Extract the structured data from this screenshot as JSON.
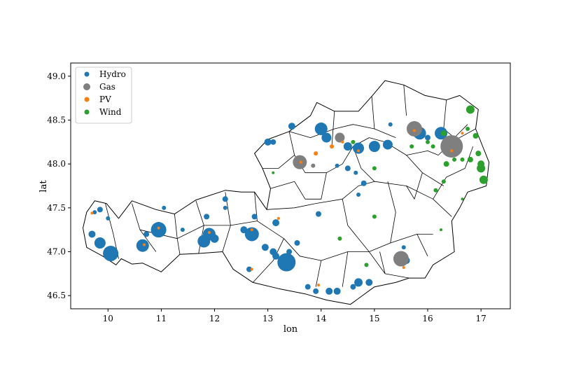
{
  "chart_data": {
    "type": "scatter",
    "xlabel": "lon",
    "ylabel": "lat",
    "xlim": [
      9.3,
      17.55
    ],
    "ylim": [
      46.35,
      49.15
    ],
    "xticks": [
      10,
      11,
      12,
      13,
      14,
      15,
      16,
      17
    ],
    "yticks": [
      46.5,
      47.0,
      47.5,
      48.0,
      48.5,
      49.0
    ],
    "xtick_labels": [
      "10",
      "11",
      "12",
      "13",
      "14",
      "15",
      "16",
      "17"
    ],
    "ytick_labels": [
      "46.5",
      "47.0",
      "47.5",
      "48.0",
      "48.5",
      "49.0"
    ],
    "legend_position": "upper-left",
    "grid": false,
    "series": [
      {
        "name": "Hydro",
        "color": "#1f77b4",
        "points": [
          {
            "x": 10.05,
            "y": 46.98,
            "s": 11
          },
          {
            "x": 9.85,
            "y": 47.1,
            "s": 8
          },
          {
            "x": 9.7,
            "y": 47.2,
            "s": 5
          },
          {
            "x": 9.75,
            "y": 47.45,
            "s": 3
          },
          {
            "x": 9.85,
            "y": 47.48,
            "s": 4
          },
          {
            "x": 10.0,
            "y": 47.38,
            "s": 3
          },
          {
            "x": 10.65,
            "y": 47.07,
            "s": 9
          },
          {
            "x": 10.72,
            "y": 47.2,
            "s": 4
          },
          {
            "x": 10.95,
            "y": 47.25,
            "s": 11
          },
          {
            "x": 10.95,
            "y": 47.3,
            "s": 5
          },
          {
            "x": 11.05,
            "y": 47.5,
            "s": 3
          },
          {
            "x": 11.4,
            "y": 47.25,
            "s": 3
          },
          {
            "x": 11.8,
            "y": 47.12,
            "s": 9
          },
          {
            "x": 11.9,
            "y": 47.2,
            "s": 9
          },
          {
            "x": 12.0,
            "y": 47.15,
            "s": 6
          },
          {
            "x": 11.85,
            "y": 47.4,
            "s": 4
          },
          {
            "x": 12.2,
            "y": 47.6,
            "s": 4
          },
          {
            "x": 12.2,
            "y": 47.5,
            "s": 3
          },
          {
            "x": 12.55,
            "y": 47.25,
            "s": 5
          },
          {
            "x": 12.7,
            "y": 47.2,
            "s": 10
          },
          {
            "x": 12.75,
            "y": 47.4,
            "s": 4
          },
          {
            "x": 13.15,
            "y": 47.33,
            "s": 5
          },
          {
            "x": 13.35,
            "y": 46.88,
            "s": 13
          },
          {
            "x": 13.1,
            "y": 47.0,
            "s": 5
          },
          {
            "x": 13.15,
            "y": 46.95,
            "s": 5
          },
          {
            "x": 12.95,
            "y": 47.05,
            "s": 5
          },
          {
            "x": 12.65,
            "y": 46.8,
            "s": 4
          },
          {
            "x": 13.55,
            "y": 47.1,
            "s": 4
          },
          {
            "x": 13.75,
            "y": 46.6,
            "s": 4
          },
          {
            "x": 13.9,
            "y": 46.55,
            "s": 4
          },
          {
            "x": 14.15,
            "y": 46.55,
            "s": 5
          },
          {
            "x": 14.3,
            "y": 46.55,
            "s": 5
          },
          {
            "x": 14.6,
            "y": 46.6,
            "s": 4
          },
          {
            "x": 14.7,
            "y": 46.65,
            "s": 6
          },
          {
            "x": 14.9,
            "y": 46.65,
            "s": 5
          },
          {
            "x": 13.0,
            "y": 48.25,
            "s": 5
          },
          {
            "x": 13.1,
            "y": 48.25,
            "s": 4
          },
          {
            "x": 13.45,
            "y": 48.43,
            "s": 5
          },
          {
            "x": 14.0,
            "y": 48.4,
            "s": 9
          },
          {
            "x": 14.1,
            "y": 48.3,
            "s": 7
          },
          {
            "x": 14.5,
            "y": 48.2,
            "s": 6
          },
          {
            "x": 14.7,
            "y": 48.18,
            "s": 8
          },
          {
            "x": 15.0,
            "y": 48.2,
            "s": 8
          },
          {
            "x": 15.25,
            "y": 48.22,
            "s": 7
          },
          {
            "x": 15.85,
            "y": 48.35,
            "s": 9
          },
          {
            "x": 16.25,
            "y": 48.35,
            "s": 9
          },
          {
            "x": 16.0,
            "y": 48.3,
            "s": 4
          },
          {
            "x": 15.3,
            "y": 48.45,
            "s": 3
          },
          {
            "x": 14.3,
            "y": 47.98,
            "s": 3
          },
          {
            "x": 14.5,
            "y": 47.95,
            "s": 4
          },
          {
            "x": 14.65,
            "y": 47.9,
            "s": 3
          },
          {
            "x": 14.8,
            "y": 47.78,
            "s": 4
          },
          {
            "x": 14.7,
            "y": 47.65,
            "s": 3
          },
          {
            "x": 13.95,
            "y": 47.43,
            "s": 4
          },
          {
            "x": 15.6,
            "y": 46.9,
            "s": 5
          },
          {
            "x": 15.55,
            "y": 47.05,
            "s": 3
          },
          {
            "x": 13.4,
            "y": 47.0,
            "s": 4
          }
        ]
      },
      {
        "name": "Gas",
        "color": "#7f7f7f",
        "points": [
          {
            "x": 13.6,
            "y": 48.02,
            "s": 10
          },
          {
            "x": 14.35,
            "y": 48.3,
            "s": 7
          },
          {
            "x": 15.75,
            "y": 48.4,
            "s": 11
          },
          {
            "x": 16.45,
            "y": 48.2,
            "s": 16
          },
          {
            "x": 15.5,
            "y": 46.92,
            "s": 11
          },
          {
            "x": 13.85,
            "y": 47.98,
            "s": 3
          }
        ]
      },
      {
        "name": "PV",
        "color": "#ff7f0e",
        "points": [
          {
            "x": 9.7,
            "y": 47.44,
            "s": 2
          },
          {
            "x": 10.68,
            "y": 47.08,
            "s": 2
          },
          {
            "x": 10.95,
            "y": 47.27,
            "s": 2
          },
          {
            "x": 11.9,
            "y": 47.22,
            "s": 2
          },
          {
            "x": 12.7,
            "y": 47.25,
            "s": 2
          },
          {
            "x": 13.2,
            "y": 47.38,
            "s": 2
          },
          {
            "x": 13.9,
            "y": 48.12,
            "s": 3
          },
          {
            "x": 14.2,
            "y": 48.2,
            "s": 3
          },
          {
            "x": 14.4,
            "y": 48.25,
            "s": 2
          },
          {
            "x": 14.7,
            "y": 48.15,
            "s": 2
          },
          {
            "x": 15.75,
            "y": 48.38,
            "s": 2
          },
          {
            "x": 16.45,
            "y": 48.15,
            "s": 2
          },
          {
            "x": 16.65,
            "y": 48.35,
            "s": 2
          },
          {
            "x": 12.7,
            "y": 46.8,
            "s": 2
          },
          {
            "x": 13.95,
            "y": 46.62,
            "s": 2
          },
          {
            "x": 15.55,
            "y": 46.82,
            "s": 2
          },
          {
            "x": 13.62,
            "y": 48.02,
            "s": 2
          }
        ]
      },
      {
        "name": "Wind",
        "color": "#2ca02c",
        "points": [
          {
            "x": 16.8,
            "y": 48.62,
            "s": 6
          },
          {
            "x": 16.75,
            "y": 48.4,
            "s": 3
          },
          {
            "x": 16.9,
            "y": 48.32,
            "s": 4
          },
          {
            "x": 16.95,
            "y": 48.12,
            "s": 4
          },
          {
            "x": 17.0,
            "y": 48.0,
            "s": 5
          },
          {
            "x": 17.0,
            "y": 47.95,
            "s": 6
          },
          {
            "x": 17.05,
            "y": 47.82,
            "s": 6
          },
          {
            "x": 16.8,
            "y": 48.05,
            "s": 4
          },
          {
            "x": 16.65,
            "y": 48.05,
            "s": 3
          },
          {
            "x": 16.5,
            "y": 48.05,
            "s": 3
          },
          {
            "x": 16.35,
            "y": 48.0,
            "s": 4
          },
          {
            "x": 16.3,
            "y": 47.8,
            "s": 3
          },
          {
            "x": 16.3,
            "y": 48.35,
            "s": 4
          },
          {
            "x": 16.1,
            "y": 48.2,
            "s": 3
          },
          {
            "x": 16.0,
            "y": 48.25,
            "s": 3
          },
          {
            "x": 15.7,
            "y": 48.2,
            "s": 3
          },
          {
            "x": 16.15,
            "y": 47.7,
            "s": 3
          },
          {
            "x": 15.0,
            "y": 47.95,
            "s": 3
          },
          {
            "x": 15.0,
            "y": 47.4,
            "s": 3
          },
          {
            "x": 14.35,
            "y": 47.15,
            "s": 3
          },
          {
            "x": 14.85,
            "y": 46.85,
            "s": 3
          },
          {
            "x": 16.65,
            "y": 47.6,
            "s": 2
          },
          {
            "x": 13.1,
            "y": 47.9,
            "s": 2
          },
          {
            "x": 14.6,
            "y": 48.25,
            "s": 3
          },
          {
            "x": 16.25,
            "y": 47.25,
            "s": 2
          }
        ]
      }
    ]
  }
}
